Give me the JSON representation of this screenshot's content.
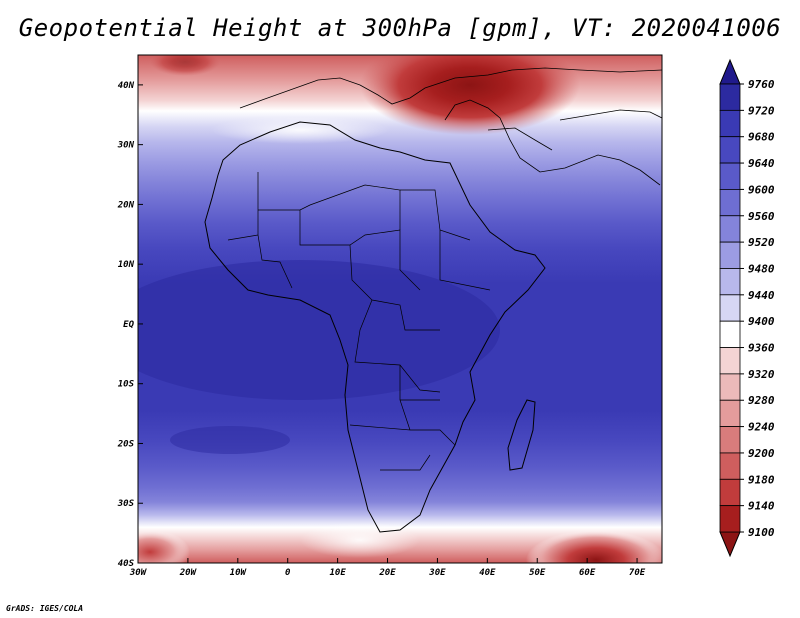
{
  "title": "Geopotential Height at 300hPa [gpm], VT: 2020041006",
  "footer": "GrADS: IGES/COLA",
  "map": {
    "projection": "latlon",
    "lon_range": [
      -30,
      75
    ],
    "lat_range": [
      -40,
      45
    ],
    "variable": "Geopotential Height",
    "level": "300hPa",
    "units": "gpm",
    "valid_time": "2020041006",
    "lat_tick_labels": [
      "40N",
      "30N",
      "20N",
      "10N",
      "EQ",
      "10S",
      "20S",
      "30S",
      "40S"
    ],
    "lat_tick_values": [
      40,
      30,
      20,
      10,
      0,
      -10,
      -20,
      -30,
      -40
    ],
    "lon_tick_labels": [
      "30W",
      "20W",
      "10W",
      "0",
      "10E",
      "20E",
      "30E",
      "40E",
      "50E",
      "60E",
      "70E"
    ],
    "lon_tick_values": [
      -30,
      -20,
      -10,
      0,
      10,
      20,
      30,
      40,
      50,
      60,
      70
    ]
  },
  "colorbar": {
    "levels": [
      "9760",
      "9720",
      "9680",
      "9640",
      "9600",
      "9560",
      "9520",
      "9480",
      "9440",
      "9400",
      "9360",
      "9320",
      "9280",
      "9240",
      "9200",
      "9180",
      "9140",
      "9100"
    ],
    "colors": [
      "#201a8c",
      "#2c2aa0",
      "#3a3ab4",
      "#4848bf",
      "#5a5ac9",
      "#6e6ed2",
      "#8484da",
      "#9c9ce3",
      "#b8b8ec",
      "#d6d6f4",
      "#ffffff",
      "#f4d4d4",
      "#ecbaba",
      "#e49c9c",
      "#d97c7c",
      "#cf5e5e",
      "#c13c3c",
      "#a61e1e",
      "#8c1414"
    ]
  }
}
